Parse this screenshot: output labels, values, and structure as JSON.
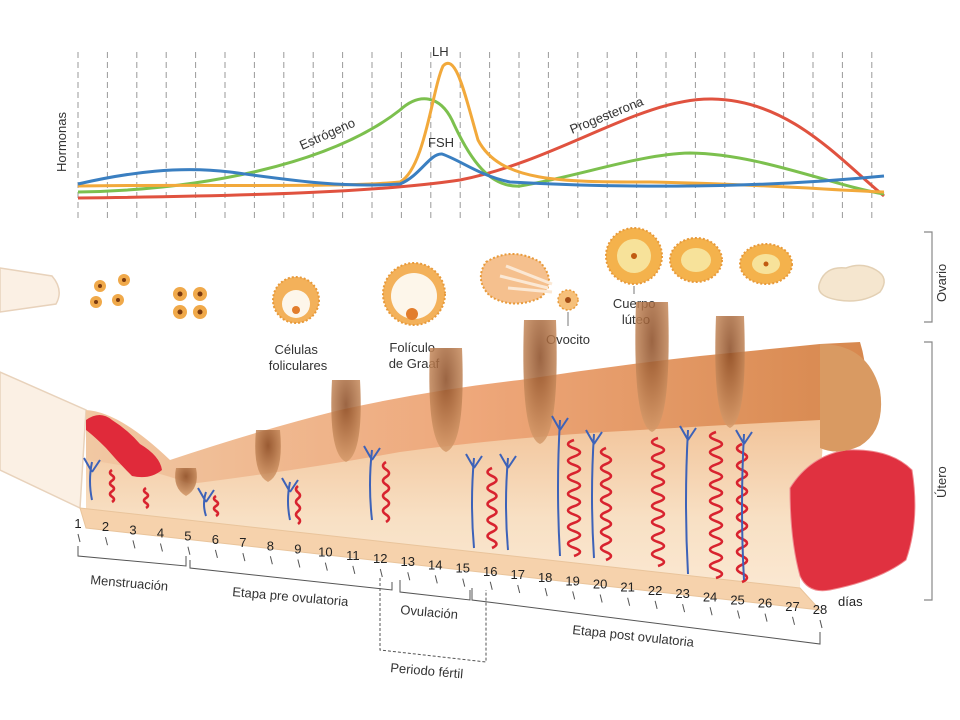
{
  "hormones": {
    "axis_label": "Hormonas",
    "lh": "LH",
    "fsh": "FSH",
    "estrogen": "Estrógeno",
    "progesterone": "Progesterona",
    "colors": {
      "lh": "#f2a93b",
      "fsh": "#3a7fc1",
      "estrogen": "#7cc04e",
      "progesterone": "#e0523f"
    }
  },
  "ovary": {
    "side_label": "Ovario",
    "follicular_cells": "Células foliculares",
    "graaf_follicle": "Folículo de Graaf",
    "oocyte": "Ovocito",
    "corpus_luteum": "Cuerpo lúteo"
  },
  "uterus": {
    "side_label": "Útero"
  },
  "timeline": {
    "days": [
      "1",
      "2",
      "3",
      "4",
      "5",
      "6",
      "7",
      "8",
      "9",
      "10",
      "11",
      "12",
      "13",
      "14",
      "15",
      "16",
      "17",
      "18",
      "19",
      "20",
      "21",
      "22",
      "23",
      "24",
      "25",
      "26",
      "27",
      "28"
    ],
    "days_label": "días",
    "phases": {
      "menstruation": "Menstruación",
      "pre_ovulatory": "Etapa pre ovulatoria",
      "ovulation": "Ovulación",
      "post_ovulatory": "Etapa post ovulatoria",
      "fertile": "Periodo fértil"
    }
  }
}
